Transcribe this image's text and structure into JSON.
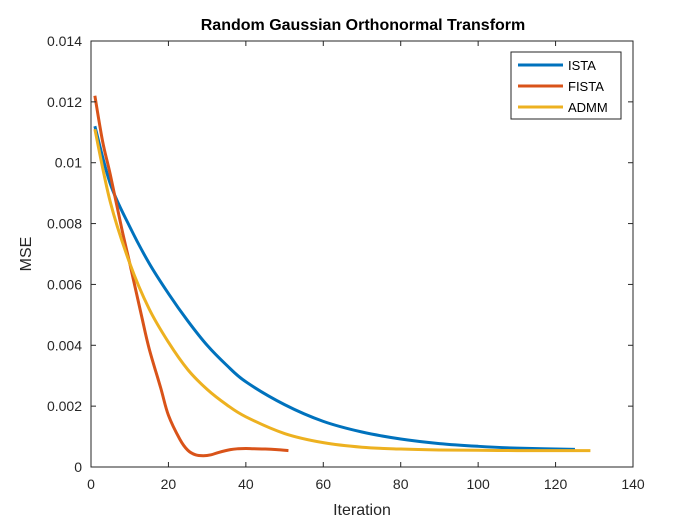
{
  "chart_data": {
    "type": "line",
    "title": "Random Gaussian Orthonormal Transform",
    "xlabel": "Iteration",
    "ylabel": "MSE",
    "xlim": [
      0,
      140
    ],
    "ylim": [
      0,
      0.014
    ],
    "xticks": [
      0,
      20,
      40,
      60,
      80,
      100,
      120,
      140
    ],
    "yticks": [
      0,
      0.002,
      0.004,
      0.006,
      0.008,
      0.01,
      0.012,
      0.014
    ],
    "xtick_labels": [
      "0",
      "20",
      "40",
      "60",
      "80",
      "100",
      "120",
      "140"
    ],
    "ytick_labels": [
      "0",
      "0.002",
      "0.004",
      "0.006",
      "0.008",
      "0.01",
      "0.012",
      "0.014"
    ],
    "grid": false,
    "legend_position": "top-right",
    "series": [
      {
        "name": "ISTA",
        "color": "#0072BD",
        "x": [
          1,
          5,
          10,
          15,
          20,
          25,
          30,
          35,
          40,
          50,
          60,
          70,
          80,
          90,
          100,
          110,
          125
        ],
        "y": [
          0.0112,
          0.0093,
          0.0079,
          0.0067,
          0.0057,
          0.0048,
          0.004,
          0.00335,
          0.0028,
          0.00205,
          0.0015,
          0.00115,
          0.00092,
          0.00077,
          0.00068,
          0.00062,
          0.00058
        ]
      },
      {
        "name": "FISTA",
        "color": "#D95319",
        "x": [
          1,
          3,
          5,
          8,
          10,
          13,
          15,
          18,
          20,
          23,
          25,
          27,
          29,
          31,
          33,
          36,
          38,
          40,
          42,
          45,
          48,
          51
        ],
        "y": [
          0.0122,
          0.0107,
          0.0096,
          0.0078,
          0.0067,
          0.005,
          0.0039,
          0.0026,
          0.0017,
          0.0009,
          0.00055,
          0.0004,
          0.00037,
          0.0004,
          0.00048,
          0.00057,
          0.0006,
          0.00061,
          0.0006,
          0.00059,
          0.00057,
          0.00054
        ]
      },
      {
        "name": "ADMM",
        "color": "#EDB120",
        "x": [
          1,
          5,
          10,
          15,
          20,
          25,
          30,
          35,
          40,
          50,
          60,
          70,
          80,
          90,
          100,
          110,
          120,
          129
        ],
        "y": [
          0.0111,
          0.0087,
          0.0067,
          0.0052,
          0.0041,
          0.0032,
          0.00255,
          0.00205,
          0.00165,
          0.0011,
          0.0008,
          0.00065,
          0.00059,
          0.00056,
          0.00055,
          0.00054,
          0.00054,
          0.00054
        ]
      }
    ]
  }
}
